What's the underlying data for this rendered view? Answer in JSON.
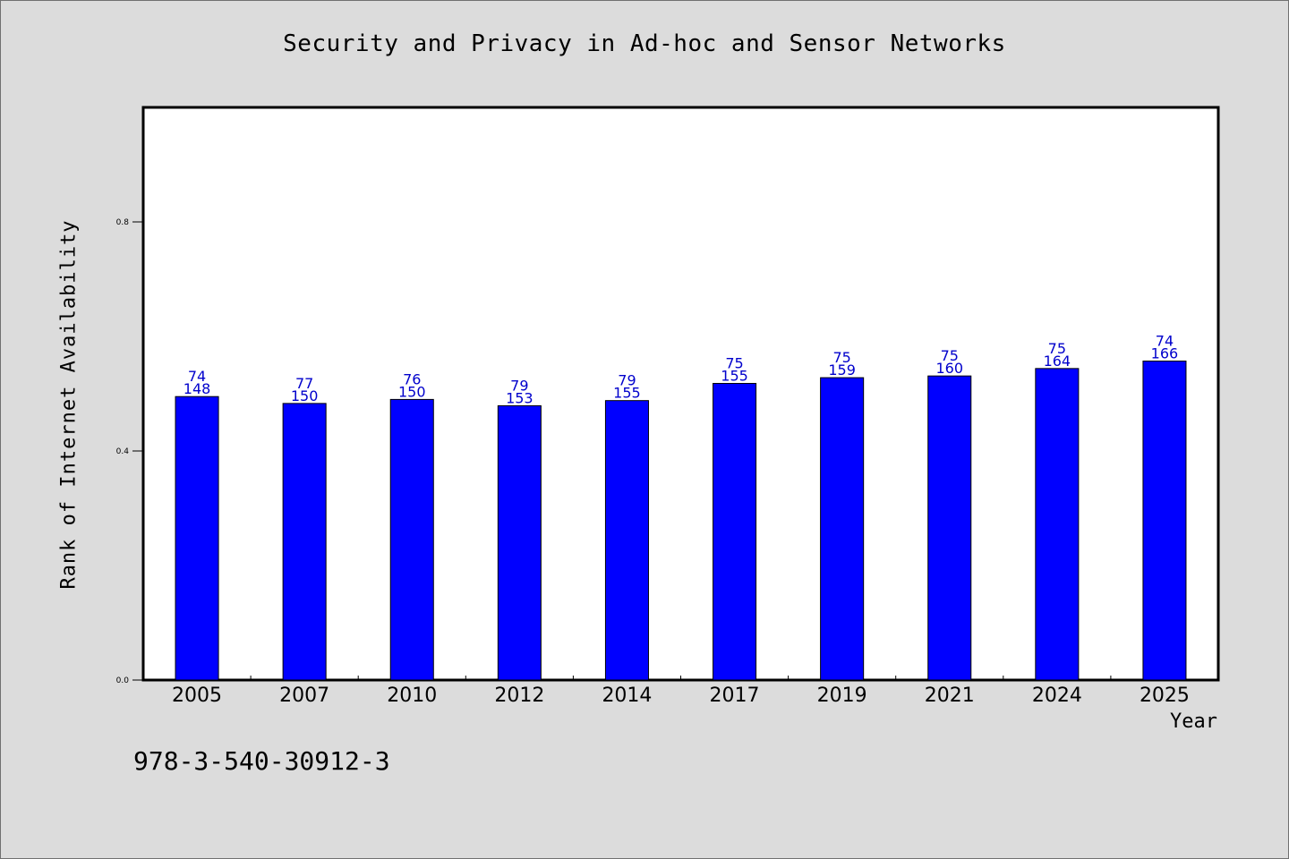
{
  "title": "Security and Privacy in Ad-hoc and Sensor Networks",
  "footer_text": "978-3-540-30912-3",
  "chart_data": {
    "type": "bar",
    "title": "Security and Privacy in Ad-hoc and Sensor Networks",
    "xlabel": "Year",
    "ylabel": "Rank of Internet Availability",
    "categories": [
      "2005",
      "2007",
      "2010",
      "2012",
      "2014",
      "2017",
      "2019",
      "2021",
      "2024",
      "2025"
    ],
    "values": [
      0.495,
      0.483,
      0.49,
      0.479,
      0.488,
      0.518,
      0.528,
      0.531,
      0.544,
      0.557
    ],
    "bar_labels_top": [
      "74",
      "77",
      "76",
      "79",
      "79",
      "75",
      "75",
      "75",
      "75",
      "74"
    ],
    "bar_labels_bottom": [
      "148",
      "150",
      "150",
      "153",
      "155",
      "155",
      "159",
      "160",
      "164",
      "166"
    ],
    "yticks": [
      0.0,
      0.4,
      0.8
    ],
    "ytick_labels": [
      "0.0",
      "0.4",
      "0.8"
    ],
    "ylim": [
      0.0,
      1.0
    ],
    "grid": false,
    "bar_color": "#0000ff",
    "label_color": "#0000cc",
    "plot_background": "#ffffff",
    "figure_background": "#dcdcdc"
  }
}
